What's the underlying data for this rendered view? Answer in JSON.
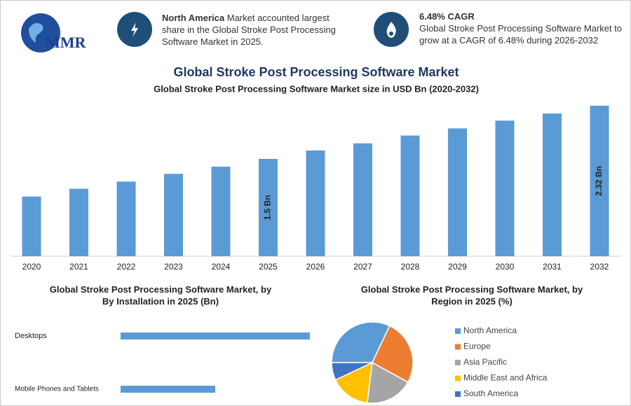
{
  "header": {
    "logo": "MMR",
    "highlights": [
      {
        "bold": "North America",
        "text": "Market accounted largest share in the Global Stroke Post Processing Software Market in 2025."
      },
      {
        "bold": "6.48% CAGR",
        "text": "Global Stroke Post Processing Software Market to grow at a CAGR of 6.48% during 2026-2032"
      }
    ]
  },
  "chart_data": [
    {
      "type": "bar",
      "title": "Global Stroke Post Processing Software Market",
      "subtitle": "Global Stroke Post Processing Software Market size in USD Bn (2020-2032)",
      "categories": [
        "2020",
        "2021",
        "2022",
        "2023",
        "2024",
        "2025",
        "2026",
        "2027",
        "2028",
        "2029",
        "2030",
        "2031",
        "2032"
      ],
      "values": [
        0.92,
        1.04,
        1.15,
        1.27,
        1.38,
        1.5,
        1.63,
        1.74,
        1.86,
        1.97,
        2.09,
        2.2,
        2.32
      ],
      "value_labels": [
        null,
        null,
        null,
        null,
        null,
        "1.5 Bn",
        null,
        null,
        null,
        null,
        null,
        null,
        "2.32 Bn"
      ],
      "color": "#5b9bd5"
    },
    {
      "type": "bar",
      "orientation": "horizontal",
      "title": "Global Stroke Post Processing Software Market, by By Installation in 2025 (Bn)",
      "categories": [
        "Desktops",
        "Mobile Phones and Tablets"
      ],
      "values": [
        1.0,
        0.5
      ],
      "color": "#5b9bd5"
    },
    {
      "type": "pie",
      "title": "Global Stroke Post Processing Software Market, by Region in 2025 (%)",
      "categories": [
        "North America",
        "Europe",
        "Asia Pacific",
        "Middle East and Africa",
        "South America"
      ],
      "values": [
        32,
        26,
        19,
        16,
        7
      ],
      "colors": [
        "#5b9bd5",
        "#ed7d31",
        "#a5a5a5",
        "#ffc000",
        "#4472c4"
      ],
      "legend": "right"
    }
  ]
}
